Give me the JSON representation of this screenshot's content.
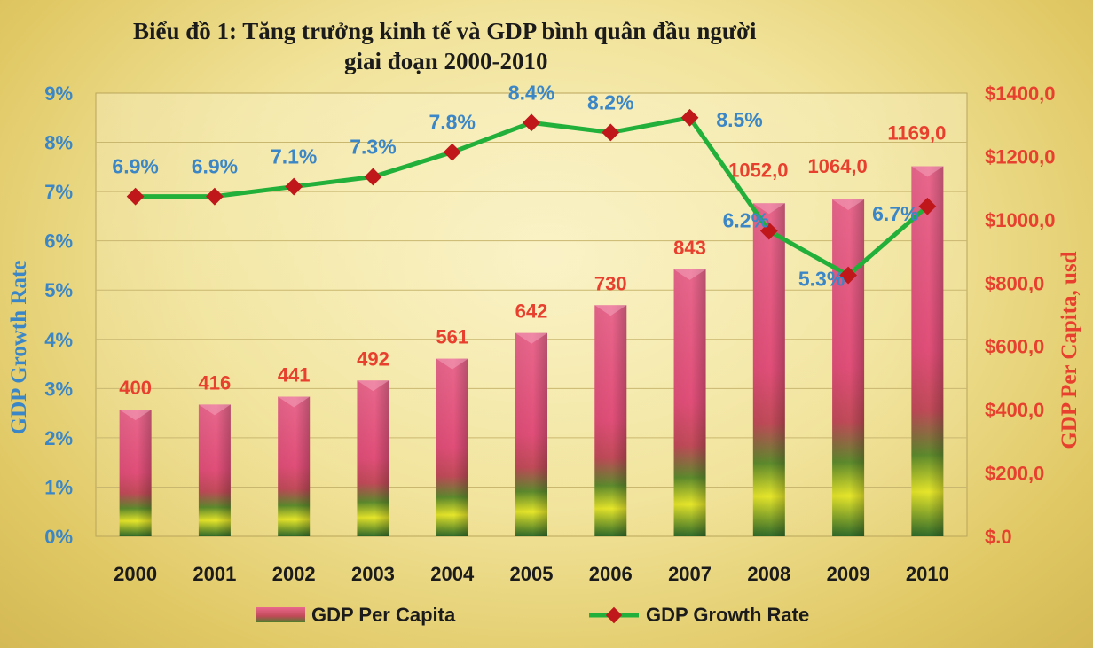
{
  "chart_data": {
    "type": "bar+line",
    "title_line1": "Biểu đồ 1:  Tăng trưởng kinh tế và GDP bình quân đầu người",
    "title_line2": "giai đoạn 2000-2010",
    "categories": [
      "2000",
      "2001",
      "2002",
      "2003",
      "2004",
      "2005",
      "2006",
      "2007",
      "2008",
      "2009",
      "2010"
    ],
    "series": [
      {
        "name": "GDP Per Capita",
        "type": "bar",
        "axis": "right",
        "values": [
          400,
          416,
          441,
          492,
          561,
          642,
          730,
          843,
          1052,
          1064,
          1169
        ],
        "labels": [
          "400",
          "416",
          "441",
          "492",
          "561",
          "642",
          "730",
          "843",
          "1052,0",
          "1064,0",
          "1169,0"
        ],
        "color": "#e0507a"
      },
      {
        "name": "GDP Growth Rate",
        "type": "line",
        "axis": "left",
        "values": [
          6.9,
          6.9,
          7.1,
          7.3,
          7.8,
          8.4,
          8.2,
          8.5,
          6.2,
          5.3,
          6.7
        ],
        "labels": [
          "6.9%",
          "6.9%",
          "7.1%",
          "7.3%",
          "7.8%",
          "8.4%",
          "8.2%",
          "8.5%",
          "6.2%",
          "5.3%",
          "6.7%"
        ],
        "line_color": "#22b03a",
        "marker_color": "#c0171b"
      }
    ],
    "y_left": {
      "label": "GDP Growth Rate",
      "range": [
        0,
        9
      ],
      "ticks": [
        "0%",
        "1%",
        "2%",
        "3%",
        "4%",
        "5%",
        "6%",
        "7%",
        "8%",
        "9%"
      ]
    },
    "y_right": {
      "label": "GDP Per Capita, usd",
      "range": [
        0,
        1400
      ],
      "ticks": [
        "$.0",
        "$200,0",
        "$400,0",
        "$600,0",
        "$800,0",
        "$1000,0",
        "$1200,0",
        "$1400,0"
      ]
    },
    "grid": true,
    "legend_position": "bottom"
  }
}
